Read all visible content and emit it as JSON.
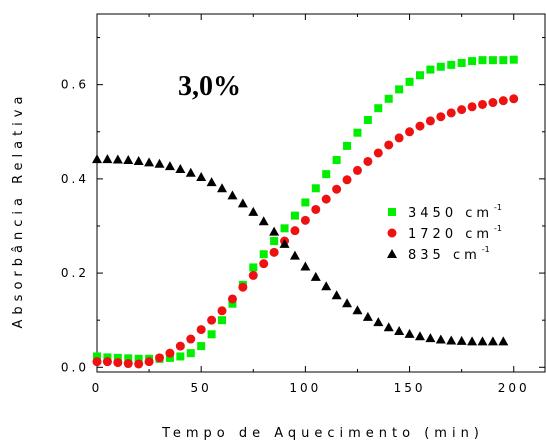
{
  "chart_data": {
    "type": "scatter",
    "title": "",
    "annotation": "3,0%",
    "xlabel": "Tempo de Aquecimento (min)",
    "ylabel": "Absorbância Relativa",
    "xlim": [
      0,
      215
    ],
    "ylim": [
      -0.01,
      0.75
    ],
    "xticks": [
      0,
      50,
      100,
      150,
      200
    ],
    "xtick_labels": [
      "0",
      "50",
      "100",
      "150",
      "200"
    ],
    "yticks": [
      0.0,
      0.2,
      0.4,
      0.6
    ],
    "ytick_labels": [
      "0.0",
      "0.2",
      "0.4",
      "0.6"
    ],
    "grid": false,
    "legend_position": "center-right",
    "series": [
      {
        "name": "3450 cm",
        "name_sup": "-1",
        "color": "#00ee00",
        "marker": "square",
        "x": [
          0,
          5,
          10,
          15,
          20,
          25,
          30,
          35,
          40,
          45,
          50,
          55,
          60,
          65,
          70,
          75,
          80,
          85,
          90,
          95,
          100,
          105,
          110,
          115,
          120,
          125,
          130,
          135,
          140,
          145,
          150,
          155,
          160,
          165,
          170,
          175,
          180,
          185,
          190,
          195,
          200
        ],
        "y": [
          0.023,
          0.021,
          0.02,
          0.019,
          0.018,
          0.018,
          0.018,
          0.02,
          0.023,
          0.03,
          0.045,
          0.07,
          0.1,
          0.135,
          0.175,
          0.212,
          0.24,
          0.268,
          0.295,
          0.322,
          0.35,
          0.38,
          0.41,
          0.44,
          0.47,
          0.498,
          0.525,
          0.55,
          0.57,
          0.59,
          0.606,
          0.62,
          0.632,
          0.638,
          0.642,
          0.646,
          0.65,
          0.652,
          0.652,
          0.652,
          0.653
        ]
      },
      {
        "name": "1720 cm",
        "name_sup": "-1",
        "color": "#ee1111",
        "marker": "circle",
        "x": [
          0,
          5,
          10,
          15,
          20,
          25,
          30,
          35,
          40,
          45,
          50,
          55,
          60,
          65,
          70,
          75,
          80,
          85,
          90,
          95,
          100,
          105,
          110,
          115,
          120,
          125,
          130,
          135,
          140,
          145,
          150,
          155,
          160,
          165,
          170,
          175,
          180,
          185,
          190,
          195,
          200
        ],
        "y": [
          0.012,
          0.012,
          0.01,
          0.008,
          0.007,
          0.012,
          0.02,
          0.03,
          0.045,
          0.06,
          0.08,
          0.1,
          0.12,
          0.145,
          0.17,
          0.195,
          0.22,
          0.244,
          0.268,
          0.29,
          0.312,
          0.335,
          0.357,
          0.378,
          0.398,
          0.418,
          0.437,
          0.455,
          0.472,
          0.487,
          0.5,
          0.512,
          0.523,
          0.532,
          0.54,
          0.547,
          0.553,
          0.558,
          0.562,
          0.566,
          0.57
        ]
      },
      {
        "name": "835 cm",
        "name_sup": "-1",
        "color": "#000000",
        "marker": "triangle",
        "x": [
          0,
          5,
          10,
          15,
          20,
          25,
          30,
          35,
          40,
          45,
          50,
          55,
          60,
          65,
          70,
          75,
          80,
          85,
          90,
          95,
          100,
          105,
          110,
          115,
          120,
          125,
          130,
          135,
          140,
          145,
          150,
          155,
          160,
          165,
          170,
          175,
          180,
          185,
          190,
          195
        ],
        "y": [
          0.442,
          0.442,
          0.441,
          0.44,
          0.438,
          0.435,
          0.432,
          0.427,
          0.421,
          0.413,
          0.404,
          0.393,
          0.38,
          0.365,
          0.348,
          0.33,
          0.31,
          0.288,
          0.262,
          0.237,
          0.214,
          0.192,
          0.172,
          0.153,
          0.136,
          0.121,
          0.107,
          0.096,
          0.085,
          0.077,
          0.071,
          0.066,
          0.062,
          0.059,
          0.057,
          0.056,
          0.055,
          0.055,
          0.055,
          0.055
        ]
      }
    ]
  }
}
